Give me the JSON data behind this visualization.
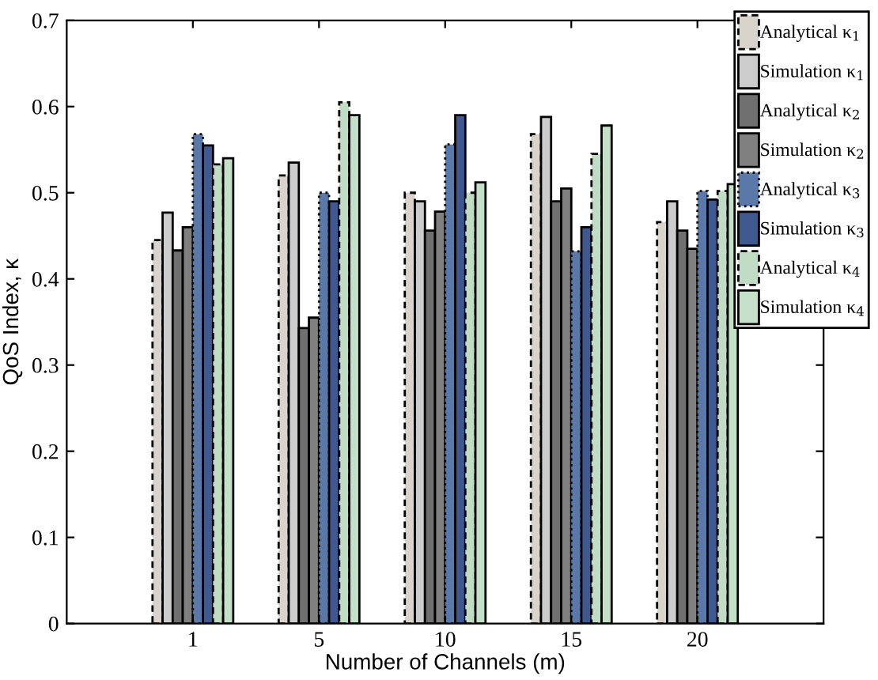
{
  "chart_data": {
    "type": "bar",
    "xlabel": "Number of Channels (m)",
    "ylabel": "QoS Index, κ",
    "categories": [
      "1",
      "5",
      "10",
      "15",
      "20"
    ],
    "series": [
      {
        "name": "Analytical κ$_{1}$",
        "color": "#d8d4cc",
        "line_style": "dashed",
        "values": [
          0.445,
          0.52,
          0.5,
          0.568,
          0.466
        ]
      },
      {
        "name": "Simulation κ$_{1}$",
        "color": "#cccccc",
        "line_style": "solid",
        "values": [
          0.477,
          0.535,
          0.49,
          0.588,
          0.49
        ]
      },
      {
        "name": "Analytical κ$_{2}$",
        "color": "#707070",
        "line_style": "solid",
        "values": [
          0.433,
          0.343,
          0.456,
          0.49,
          0.456
        ]
      },
      {
        "name": "Simulation κ$_{2}$",
        "color": "#808080",
        "line_style": "solid",
        "values": [
          0.46,
          0.355,
          0.478,
          0.505,
          0.435
        ]
      },
      {
        "name": "Analytical κ$_{3}$",
        "color": "#5a78a8",
        "line_style": "dotted",
        "values": [
          0.568,
          0.5,
          0.556,
          0.432,
          0.502
        ]
      },
      {
        "name": "Simulation κ$_{3}$",
        "color": "#405890",
        "line_style": "solid",
        "values": [
          0.555,
          0.49,
          0.59,
          0.46,
          0.492
        ]
      },
      {
        "name": "Analytical κ$_{4}$",
        "color": "#c0dcc4",
        "line_style": "dashed",
        "values": [
          0.533,
          0.605,
          0.5,
          0.545,
          0.502
        ]
      },
      {
        "name": "Simulation κ$_{4}$",
        "color": "#c4e0c8",
        "line_style": "solid",
        "values": [
          0.54,
          0.59,
          0.512,
          0.578,
          0.51
        ]
      }
    ],
    "ylim": [
      0,
      0.7
    ],
    "yticks": [
      0,
      0.1,
      0.2,
      0.3,
      0.4,
      0.5,
      0.6,
      0.7
    ],
    "grid": false,
    "legend": "top right"
  }
}
